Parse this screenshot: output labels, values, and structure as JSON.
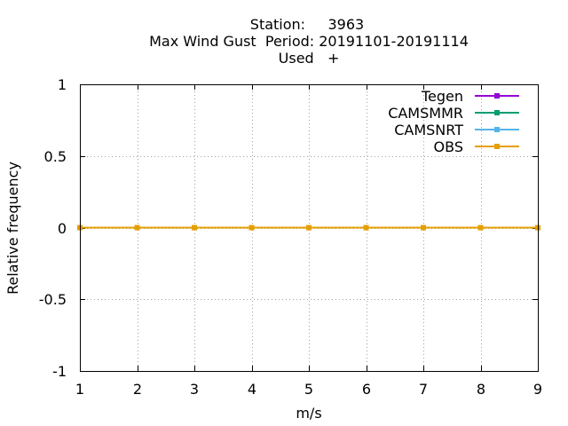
{
  "title": {
    "line1": "Station:     3963",
    "line2": "Max Wind Gust  Period: 20191101-20191114",
    "line3": "Used   +"
  },
  "colors": {
    "Tegen": "#9400d3",
    "CAMSMMR": "#009e73",
    "CAMSNRT": "#56b4e9",
    "OBS": "#e69f00"
  },
  "chart_data": {
    "type": "line",
    "title": "Station:     3963 / Max Wind Gust  Period: 20191101-20191114 / Used   +",
    "xlabel": "m/s",
    "ylabel": "Relative frequency",
    "xlim": [
      1,
      9
    ],
    "ylim": [
      -1,
      1
    ],
    "xticks": [
      1,
      2,
      3,
      4,
      5,
      6,
      7,
      8,
      9
    ],
    "yticks": [
      1,
      0.5,
      0,
      -0.5,
      -1
    ],
    "ytick_labels": [
      "1",
      "0.5",
      "0",
      "-0.5",
      "-1"
    ],
    "grid": true,
    "legend_position": "top-right",
    "x": [
      1,
      2,
      3,
      4,
      5,
      6,
      7,
      8,
      9
    ],
    "series": [
      {
        "name": "Tegen",
        "values": [
          0,
          0,
          0,
          0,
          0,
          0,
          0,
          0,
          0
        ]
      },
      {
        "name": "CAMSMMR",
        "values": [
          0,
          0,
          0,
          0,
          0,
          0,
          0,
          0,
          0
        ]
      },
      {
        "name": "CAMSNRT",
        "values": [
          0,
          0,
          0,
          0,
          0,
          0,
          0,
          0,
          0
        ]
      },
      {
        "name": "OBS",
        "values": [
          0,
          0,
          0,
          0,
          0,
          0,
          0,
          0,
          0
        ]
      }
    ]
  }
}
